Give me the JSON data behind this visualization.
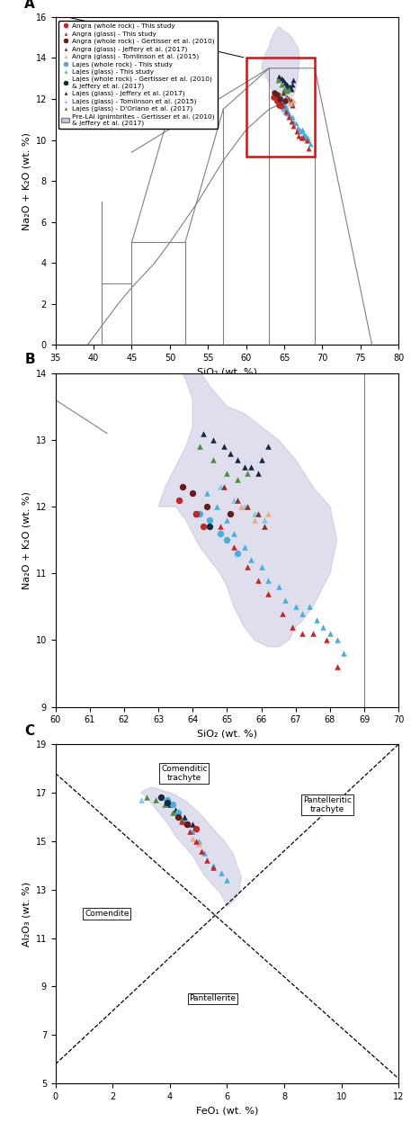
{
  "colors": {
    "angra_wr_this": "#cc2222",
    "angra_gl_this": "#cc2222",
    "angra_wr_gert": "#6b1a1a",
    "angra_gl_jeff": "#8b3020",
    "angra_gl_tom": "#f0a880",
    "lajes_wr_this": "#44b0e0",
    "lajes_gl_this": "#44b0e0",
    "lajes_wr_gert_jeff": "#152845",
    "lajes_gl_jeff": "#152845",
    "lajes_gl_tom": "#80c8e8",
    "lajes_gl_dor": "#4a9040",
    "background": "#c8c8e0"
  },
  "panel_A": {
    "xlim": [
      35,
      80
    ],
    "ylim": [
      0,
      16
    ],
    "xticks": [
      35,
      40,
      45,
      50,
      55,
      60,
      65,
      70,
      75,
      80
    ],
    "yticks": [
      0,
      2,
      4,
      6,
      8,
      10,
      12,
      14,
      16
    ],
    "xlabel": "SiO₂ (wt. %)",
    "ylabel": "Na₂O + K₂O (wt. %)"
  },
  "panel_B": {
    "xlim": [
      60,
      70
    ],
    "ylim": [
      9,
      14
    ],
    "xticks": [
      60,
      61,
      62,
      63,
      64,
      65,
      66,
      67,
      68,
      69,
      70
    ],
    "yticks": [
      9,
      10,
      11,
      12,
      13,
      14
    ],
    "xlabel": "SiO₂ (wt. %)",
    "ylabel": "Na₂O + K₂O (wt. %)"
  },
  "panel_C": {
    "xlim": [
      0,
      12
    ],
    "ylim": [
      5,
      19
    ],
    "xticks": [
      0,
      2,
      4,
      6,
      8,
      10,
      12
    ],
    "yticks": [
      5,
      7,
      9,
      11,
      13,
      15,
      17,
      19
    ],
    "xlabel": "FeO₁ (wt. %)",
    "ylabel": "Al₂O₃ (wt. %)"
  }
}
